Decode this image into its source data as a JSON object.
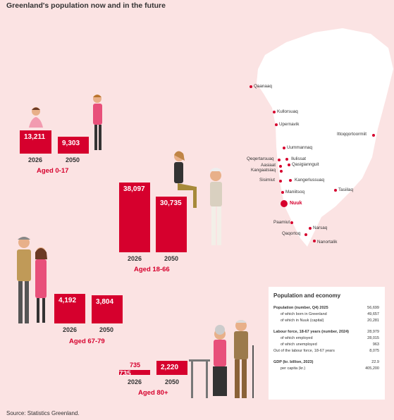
{
  "title": "Greenland's population now and in the future",
  "groups": [
    {
      "label": "Aged 0-17",
      "y2026": "2026",
      "y2050": "2050",
      "v2026": "13,211",
      "v2050": "9,303"
    },
    {
      "label": "Aged 18-66",
      "y2026": "2026",
      "y2050": "2050",
      "v2026": "38,097",
      "v2050": "30,735"
    },
    {
      "label": "Aged 67-79",
      "y2026": "2026",
      "y2050": "2050",
      "v2026": "4,192",
      "v2050": "3,804"
    },
    {
      "label": "Aged 80+",
      "y2026": "2026",
      "y2050": "2050",
      "v2026": "735",
      "v2050": "2,220"
    }
  ],
  "towns": [
    "Qaanaaq",
    "Kullorsuaq",
    "Upernavik",
    "Ittoqqortoormiit",
    "Uummannaq",
    "Qeqertarsuaq",
    "Ilulissat",
    "Aasiaat",
    "Qasigiannguit",
    "Kangaatsiaq",
    "Sisimiut",
    "Kangerlussuaq",
    "Tasiilaq",
    "Maniitsoq",
    "Nuuk",
    "Paamiut",
    "Narsaq",
    "Qaqortoq",
    "Nanortalik"
  ],
  "panel": {
    "title": "Population and economy",
    "rows": [
      {
        "label": "Population (number, Q4) 2025",
        "value": "56,699",
        "kind": "head"
      },
      {
        "label": "of which born in Greenland",
        "value": "49,657",
        "kind": "ind"
      },
      {
        "label": "of which in Nuuk (capital)",
        "value": "20,281",
        "kind": "ind"
      },
      {
        "label": "Labour force, 18-67 years (number, 2024)",
        "value": "28,979",
        "kind": "head"
      },
      {
        "label": "of which employed",
        "value": "28,015",
        "kind": "ind"
      },
      {
        "label": "of which unemployed",
        "value": "963",
        "kind": "ind"
      },
      {
        "label": "Out of the labour force, 18-67 years",
        "value": "8,075",
        "kind": "plain"
      },
      {
        "label": "GDP (kr. billion, 2023)",
        "value": "22.9",
        "kind": "head"
      },
      {
        "label": "per capita (kr.)",
        "value": "405,200",
        "kind": "ind"
      }
    ]
  },
  "source": "Source:   Statistics Greenland."
}
